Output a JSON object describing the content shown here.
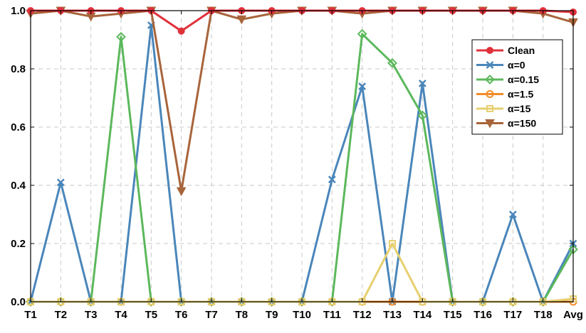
{
  "chart_data": {
    "type": "line",
    "title": "",
    "xlabel": "",
    "ylabel": "",
    "categories": [
      "T1",
      "T2",
      "T3",
      "T4",
      "T5",
      "T6",
      "T7",
      "T8",
      "T9",
      "T10",
      "T11",
      "T12",
      "T13",
      "T14",
      "T15",
      "T16",
      "T17",
      "T18",
      "Avg"
    ],
    "ylim": [
      0,
      1.0
    ],
    "yticks": [
      "0.0",
      "0.2",
      "0.4",
      "0.6",
      "0.8",
      "1.0"
    ],
    "grid": true,
    "legend_position": "top-right",
    "series": [
      {
        "name": "Clean",
        "color": "#e0313b",
        "marker": "circle",
        "values": [
          1,
          1,
          1,
          1,
          1,
          0.93,
          1,
          1,
          1,
          1,
          1,
          1,
          1,
          1,
          1,
          1,
          1,
          1,
          0.995
        ]
      },
      {
        "name": "α=0",
        "color": "#4a86ba",
        "marker": "x",
        "values": [
          0,
          0.41,
          0,
          0,
          0.95,
          0,
          0,
          0,
          0,
          0,
          0.42,
          0.74,
          0,
          0.75,
          0,
          0,
          0.3,
          0,
          0.2
        ]
      },
      {
        "name": "α=0.15",
        "color": "#5cb85c",
        "marker": "diamond",
        "values": [
          0,
          0,
          0,
          0.91,
          0,
          0,
          0,
          0,
          0,
          0,
          0,
          0.92,
          0.82,
          0.64,
          0,
          0,
          0,
          0,
          0.18
        ]
      },
      {
        "name": "α=1.5",
        "color": "#f28c28",
        "marker": "circle-open",
        "values": [
          0,
          0,
          0,
          0,
          0,
          0,
          0,
          0,
          0,
          0,
          0,
          0,
          0,
          0,
          0,
          0,
          0,
          0,
          0
        ]
      },
      {
        "name": "α=15",
        "color": "#e6d070",
        "marker": "square",
        "values": [
          0,
          0,
          0,
          0,
          0,
          0,
          0,
          0,
          0,
          0,
          0,
          0,
          0.2,
          0,
          0,
          0,
          0,
          0,
          0.01
        ]
      },
      {
        "name": "α=150",
        "color": "#a8643a",
        "marker": "triangle-down",
        "values": [
          0.99,
          1,
          0.98,
          0.99,
          1,
          0.38,
          1,
          0.97,
          0.99,
          1,
          1,
          0.99,
          1,
          1,
          1,
          1,
          1,
          0.99,
          0.96
        ]
      }
    ]
  }
}
